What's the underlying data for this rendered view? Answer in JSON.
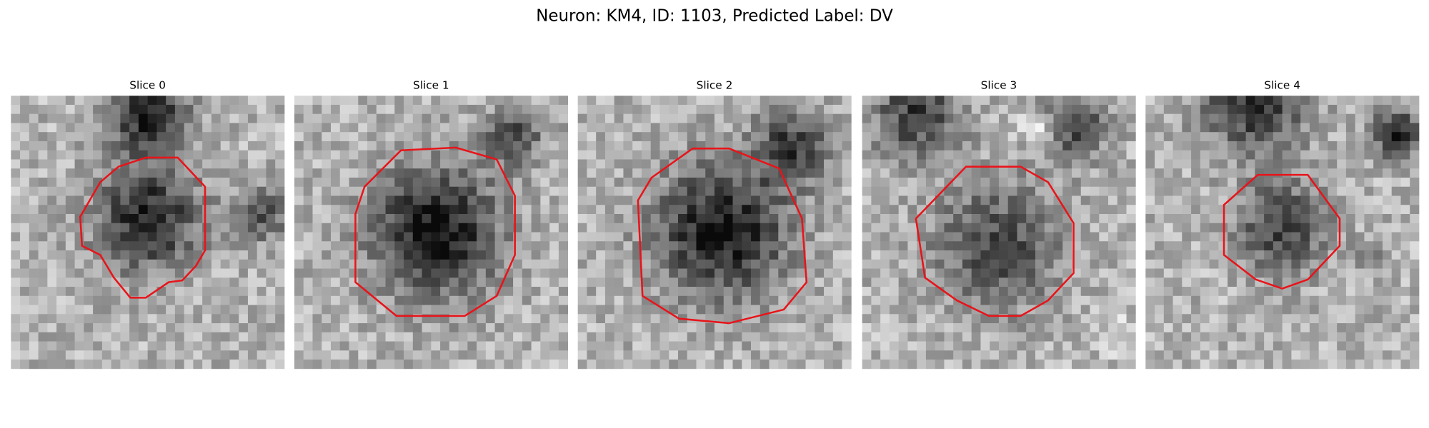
{
  "title": "Neuron: KM4, ID: 1103, Predicted Label: DV",
  "panels": [
    {
      "title": "Slice 0"
    },
    {
      "title": "Slice 1"
    },
    {
      "title": "Slice 2"
    },
    {
      "title": "Slice 3"
    },
    {
      "title": "Slice 4"
    }
  ]
}
